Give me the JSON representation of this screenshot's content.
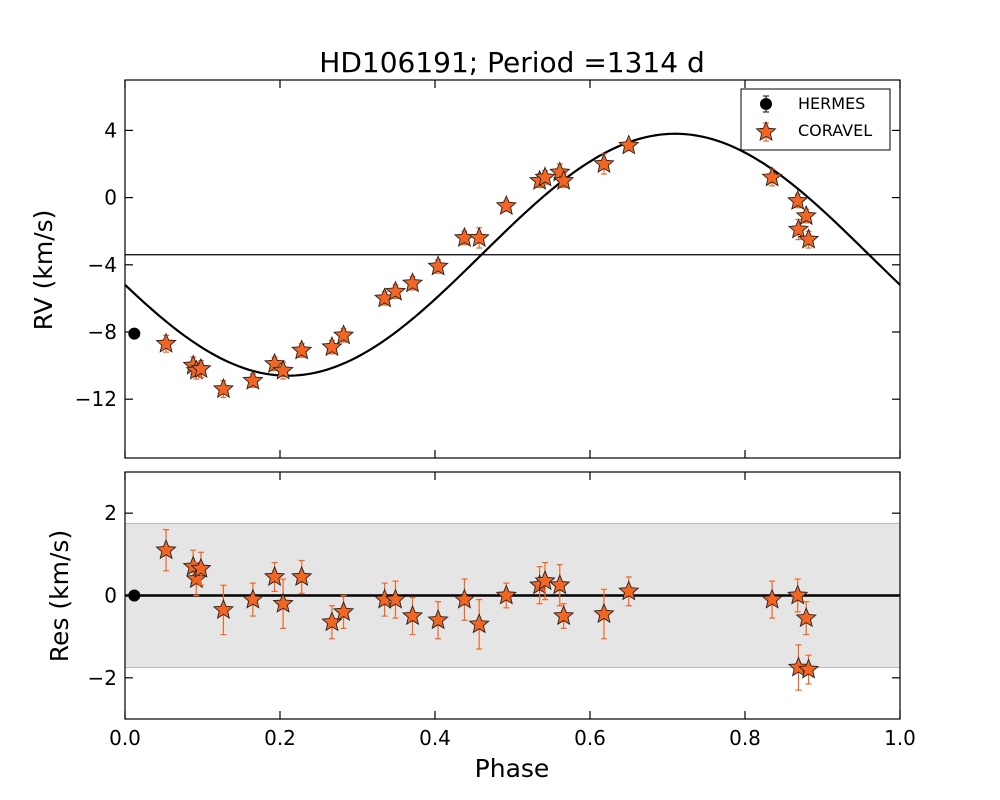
{
  "chart_data": {
    "type": "scatter",
    "title": "HD106191; Period =1314 d",
    "xlabel": "Phase",
    "colors": {
      "coravel": "#f26522",
      "hermes": "#000000",
      "band": "#e5e5e5"
    },
    "legend": {
      "position": "top-right",
      "entries": [
        "HERMES",
        "CORAVEL"
      ]
    },
    "x_range": [
      0.0,
      1.0
    ],
    "x_ticks": [
      0.0,
      0.2,
      0.4,
      0.6,
      0.8,
      1.0
    ],
    "x_tick_labels": [
      "0.0",
      "0.2",
      "0.4",
      "0.6",
      "0.8",
      "1.0"
    ],
    "panels": {
      "rv": {
        "ylabel": "RV (km/s)",
        "ylim": [
          -15.5,
          7.0
        ],
        "y_ticks": [
          4,
          0,
          -4,
          -8,
          -12
        ],
        "y_tick_labels": [
          "4",
          "0",
          "−4",
          "−8",
          "−12"
        ],
        "gamma": -3.4,
        "model": {
          "amplitude": 7.2,
          "phase_offset": 0.21
        },
        "hermes": [
          {
            "x": 0.012,
            "y": -8.1
          }
        ],
        "coravel": [
          {
            "x": 0.053,
            "y": -8.7,
            "e": 0.5
          },
          {
            "x": 0.088,
            "y": -10.0,
            "e": 0.5
          },
          {
            "x": 0.092,
            "y": -10.3,
            "e": 0.5
          },
          {
            "x": 0.098,
            "y": -10.2,
            "e": 0.5
          },
          {
            "x": 0.127,
            "y": -11.4,
            "e": 0.5
          },
          {
            "x": 0.165,
            "y": -10.9,
            "e": 0.4
          },
          {
            "x": 0.193,
            "y": -9.9,
            "e": 0.4
          },
          {
            "x": 0.204,
            "y": -10.3,
            "e": 0.5
          },
          {
            "x": 0.228,
            "y": -9.1,
            "e": 0.4
          },
          {
            "x": 0.267,
            "y": -8.9,
            "e": 0.4
          },
          {
            "x": 0.282,
            "y": -8.2,
            "e": 0.4
          },
          {
            "x": 0.335,
            "y": -6.0,
            "e": 0.4
          },
          {
            "x": 0.349,
            "y": -5.6,
            "e": 0.4
          },
          {
            "x": 0.371,
            "y": -5.1,
            "e": 0.4
          },
          {
            "x": 0.404,
            "y": -4.1,
            "e": 0.4
          },
          {
            "x": 0.438,
            "y": -2.4,
            "e": 0.4
          },
          {
            "x": 0.457,
            "y": -2.4,
            "e": 0.6
          },
          {
            "x": 0.492,
            "y": -0.5,
            "e": 0.3
          },
          {
            "x": 0.535,
            "y": 1.0,
            "e": 0.4
          },
          {
            "x": 0.542,
            "y": 1.2,
            "e": 0.4
          },
          {
            "x": 0.561,
            "y": 1.5,
            "e": 0.5
          },
          {
            "x": 0.566,
            "y": 1.0,
            "e": 0.4
          },
          {
            "x": 0.618,
            "y": 2.0,
            "e": 0.6
          },
          {
            "x": 0.65,
            "y": 3.1,
            "e": 0.3
          },
          {
            "x": 0.835,
            "y": 1.2,
            "e": 0.5
          },
          {
            "x": 0.868,
            "y": -0.2,
            "e": 0.4
          },
          {
            "x": 0.869,
            "y": -1.9,
            "e": 0.6
          },
          {
            "x": 0.879,
            "y": -1.1,
            "e": 0.4
          },
          {
            "x": 0.882,
            "y": -2.5,
            "e": 0.5
          }
        ]
      },
      "residuals": {
        "ylabel": "Res (km/s)",
        "ylim": [
          -3.0,
          3.0
        ],
        "y_ticks": [
          2,
          0,
          -2
        ],
        "y_tick_labels": [
          "2",
          "0",
          "−2"
        ],
        "band": [
          -1.75,
          1.75
        ],
        "hermes": [
          {
            "x": 0.012,
            "y": 0.0
          }
        ],
        "coravel": [
          {
            "x": 0.053,
            "y": 1.1,
            "e": 0.5
          },
          {
            "x": 0.088,
            "y": 0.7,
            "e": 0.4
          },
          {
            "x": 0.092,
            "y": 0.4,
            "e": 0.4
          },
          {
            "x": 0.098,
            "y": 0.65,
            "e": 0.4
          },
          {
            "x": 0.127,
            "y": -0.35,
            "e": 0.6
          },
          {
            "x": 0.165,
            "y": -0.1,
            "e": 0.4
          },
          {
            "x": 0.193,
            "y": 0.45,
            "e": 0.35
          },
          {
            "x": 0.204,
            "y": -0.2,
            "e": 0.6
          },
          {
            "x": 0.228,
            "y": 0.45,
            "e": 0.4
          },
          {
            "x": 0.267,
            "y": -0.65,
            "e": 0.4
          },
          {
            "x": 0.282,
            "y": -0.4,
            "e": 0.4
          },
          {
            "x": 0.335,
            "y": -0.1,
            "e": 0.4
          },
          {
            "x": 0.349,
            "y": -0.1,
            "e": 0.45
          },
          {
            "x": 0.371,
            "y": -0.5,
            "e": 0.45
          },
          {
            "x": 0.404,
            "y": -0.6,
            "e": 0.45
          },
          {
            "x": 0.438,
            "y": -0.1,
            "e": 0.5
          },
          {
            "x": 0.457,
            "y": -0.7,
            "e": 0.6
          },
          {
            "x": 0.492,
            "y": 0.0,
            "e": 0.3
          },
          {
            "x": 0.535,
            "y": 0.25,
            "e": 0.45
          },
          {
            "x": 0.542,
            "y": 0.35,
            "e": 0.45
          },
          {
            "x": 0.561,
            "y": 0.25,
            "e": 0.5
          },
          {
            "x": 0.566,
            "y": -0.5,
            "e": 0.3
          },
          {
            "x": 0.618,
            "y": -0.45,
            "e": 0.6
          },
          {
            "x": 0.65,
            "y": 0.1,
            "e": 0.35
          },
          {
            "x": 0.835,
            "y": -0.1,
            "e": 0.45
          },
          {
            "x": 0.868,
            "y": 0.0,
            "e": 0.4
          },
          {
            "x": 0.869,
            "y": -1.75,
            "e": 0.55
          },
          {
            "x": 0.879,
            "y": -0.55,
            "e": 0.4
          },
          {
            "x": 0.882,
            "y": -1.8,
            "e": 0.35
          }
        ]
      }
    }
  }
}
